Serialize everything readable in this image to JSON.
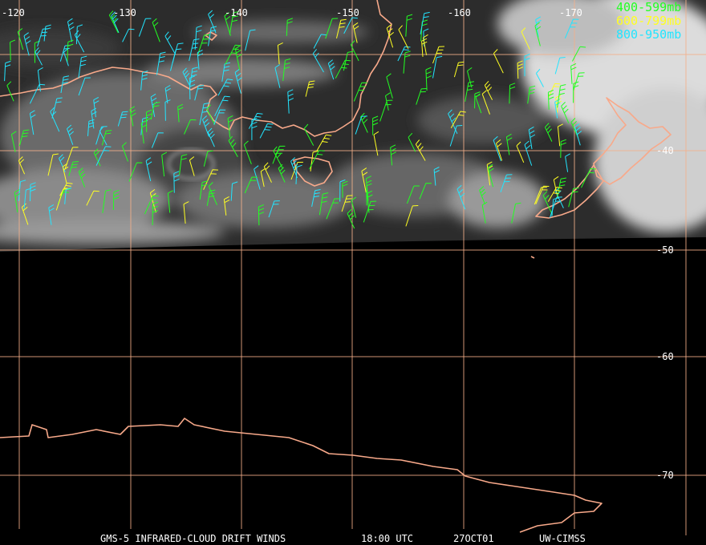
{
  "map": {
    "longitude_labels": [
      "-120",
      "-130",
      "-140",
      "-150",
      "-160",
      "-170"
    ],
    "latitude_labels": [
      "-40",
      "-50",
      "-60",
      "-70"
    ],
    "legend": [
      {
        "label": "400-599mb",
        "color": "#22ff22"
      },
      {
        "label": "600-799mb",
        "color": "#ffff22"
      },
      {
        "label": "800-950mb",
        "color": "#22e5ff"
      }
    ],
    "footer": [
      "GMS-5 INFRARED-CLOUD DRIFT WINDS",
      "18:00 UTC",
      "27OCT01",
      "UW-CIMSS"
    ]
  }
}
